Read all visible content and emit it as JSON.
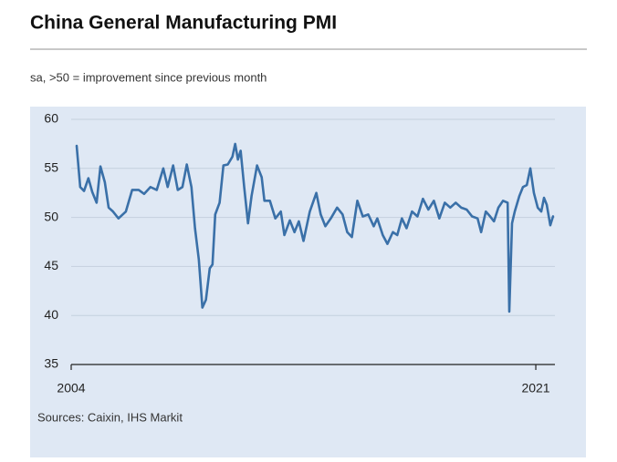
{
  "chart_data": {
    "type": "line",
    "title": "China General Manufacturing PMI",
    "subtitle": "sa, >50 = improvement since previous month",
    "source": "Sources: Caixin, IHS Markit",
    "color": "#3a70a8",
    "grid": true,
    "xlim": [
      2004,
      2021.7
    ],
    "xticks": [
      2004,
      2021
    ],
    "ylim": [
      35,
      60
    ],
    "yticks": [
      35,
      40,
      45,
      50,
      55,
      60
    ],
    "x": [
      2004.2,
      2004.33,
      2004.47,
      2004.63,
      2004.77,
      2004.93,
      2005.07,
      2005.23,
      2005.37,
      2005.53,
      2005.73,
      2006.0,
      2006.23,
      2006.47,
      2006.67,
      2006.9,
      2007.13,
      2007.37,
      2007.53,
      2007.73,
      2007.9,
      2008.07,
      2008.23,
      2008.4,
      2008.53,
      2008.67,
      2008.8,
      2008.93,
      2009.07,
      2009.17,
      2009.27,
      2009.43,
      2009.57,
      2009.73,
      2009.9,
      2010.0,
      2010.1,
      2010.2,
      2010.33,
      2010.47,
      2010.6,
      2010.8,
      2010.97,
      2011.07,
      2011.27,
      2011.47,
      2011.67,
      2011.8,
      2012.0,
      2012.17,
      2012.33,
      2012.5,
      2012.73,
      2012.97,
      2013.13,
      2013.3,
      2013.5,
      2013.73,
      2013.93,
      2014.1,
      2014.27,
      2014.47,
      2014.67,
      2014.87,
      2015.07,
      2015.2,
      2015.4,
      2015.57,
      2015.77,
      2015.93,
      2016.1,
      2016.27,
      2016.47,
      2016.67,
      2016.87,
      2017.07,
      2017.27,
      2017.47,
      2017.67,
      2017.87,
      2018.07,
      2018.27,
      2018.47,
      2018.67,
      2018.87,
      2019.0,
      2019.17,
      2019.33,
      2019.47,
      2019.63,
      2019.8,
      2019.97,
      2020.03,
      2020.13,
      2020.23,
      2020.4,
      2020.53,
      2020.67,
      2020.8,
      2020.93,
      2021.07,
      2021.2,
      2021.3,
      2021.4,
      2021.53,
      2021.63
    ],
    "values": [
      57.3,
      53.1,
      52.7,
      54.0,
      52.6,
      51.5,
      55.2,
      53.6,
      51.0,
      50.6,
      49.9,
      50.6,
      52.8,
      52.8,
      52.4,
      53.1,
      52.8,
      55.0,
      53.1,
      55.3,
      52.8,
      53.1,
      55.4,
      53.1,
      48.9,
      45.7,
      40.8,
      41.6,
      44.8,
      45.2,
      50.3,
      51.5,
      55.3,
      55.4,
      56.2,
      57.5,
      55.9,
      56.8,
      53.1,
      49.4,
      52.2,
      55.3,
      54.1,
      51.7,
      51.7,
      49.9,
      50.6,
      48.2,
      49.7,
      48.5,
      49.6,
      47.6,
      50.6,
      52.5,
      50.3,
      49.1,
      49.9,
      51.0,
      50.3,
      48.5,
      48.0,
      51.7,
      50.1,
      50.3,
      49.1,
      49.9,
      48.2,
      47.3,
      48.5,
      48.2,
      49.9,
      48.9,
      50.6,
      50.1,
      51.9,
      50.8,
      51.7,
      49.9,
      51.5,
      51.0,
      51.5,
      51.0,
      50.8,
      50.1,
      49.9,
      48.5,
      50.6,
      50.1,
      49.6,
      51.0,
      51.7,
      51.5,
      40.4,
      49.4,
      50.6,
      52.2,
      53.1,
      53.3,
      55.0,
      52.5,
      51.0,
      50.6,
      52.0,
      51.3,
      49.2,
      50.1
    ]
  }
}
